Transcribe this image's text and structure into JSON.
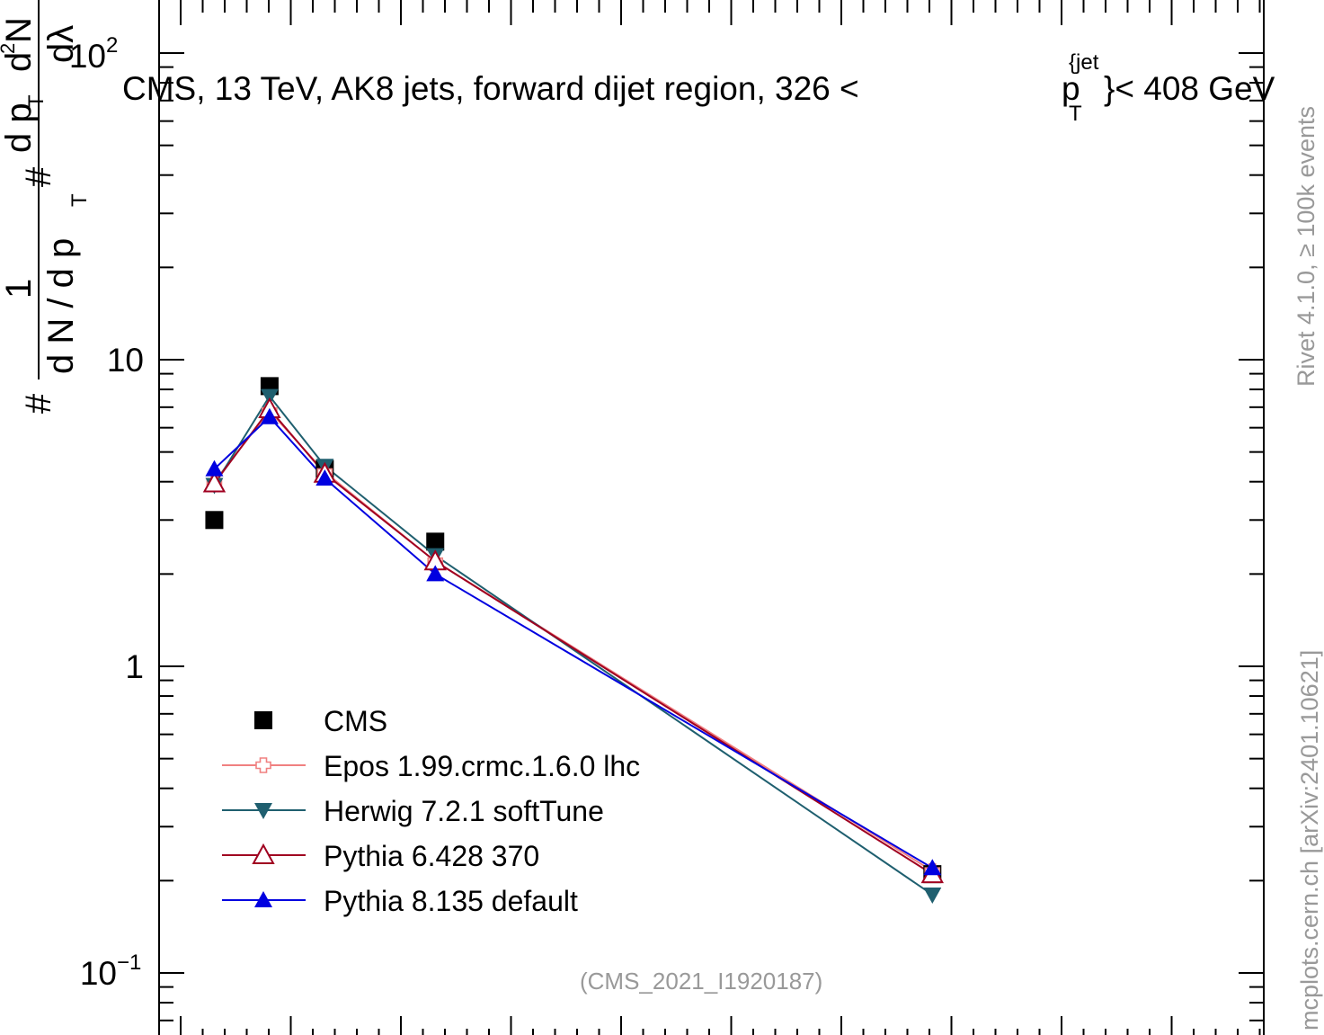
{
  "header": {
    "title_text": "CMS, 13 TeV, AK8 jets, forward dijet region, 326 <",
    "title_p": "p",
    "title_sup": "{jet",
    "title_sub": "T",
    "title_end": "}< 408 GeV"
  },
  "side": {
    "rivet": "Rivet 4.1.0, ≥ 100k events",
    "mcplots": "mcplots.cern.ch [arXiv:2401.10621]"
  },
  "ytitle": {
    "hash": "#",
    "one": "1",
    "dN": "d N / d p",
    "T": "T",
    "hash2": "#",
    "dpT": "d p",
    "T2": "T",
    "d2N": "d",
    "two": "2",
    "N": "N",
    "dl": "dλ"
  },
  "ref": "(CMS_2021_I1920187)",
  "yticks": [
    {
      "value": 100,
      "base": "10",
      "exp": "2"
    },
    {
      "value": 10,
      "base": "10",
      "exp": ""
    },
    {
      "value": 1,
      "base": "1",
      "exp": ""
    },
    {
      "value": 0.1,
      "base": "10",
      "exp": "−1"
    }
  ],
  "colors": {
    "cms": "#000000",
    "epos": "#f08080",
    "herwig": "#1f5f6f",
    "py6": "#a00020",
    "py8": "#0000e0"
  },
  "chart_data": {
    "type": "line",
    "y_scale": "log",
    "ylim": [
      0.065,
      160
    ],
    "xlim": [
      0,
      1
    ],
    "legend_position": "bottom-left",
    "series": [
      {
        "name": "CMS",
        "marker": "square-filled",
        "color": "#000000",
        "line": false,
        "x": [
          0.05,
          0.1,
          0.15,
          0.25,
          0.7
        ],
        "y": [
          3.0,
          8.2,
          4.4,
          2.55,
          0.21
        ]
      },
      {
        "name": "Epos 1.99.crmc.1.6.0 lhc",
        "marker": "cross-open",
        "color": "#f08080",
        "line": true,
        "x": [
          0.05,
          0.1,
          0.15,
          0.25,
          0.7
        ],
        "y": [
          4.0,
          6.8,
          4.3,
          2.2,
          0.215
        ]
      },
      {
        "name": "Herwig 7.2.1 softTune",
        "marker": "triangle-down-filled",
        "color": "#1f5f6f",
        "line": true,
        "x": [
          0.05,
          0.1,
          0.15,
          0.25,
          0.7
        ],
        "y": [
          3.9,
          7.6,
          4.5,
          2.3,
          0.18
        ]
      },
      {
        "name": "Pythia 6.428 370",
        "marker": "triangle-up-open",
        "color": "#a00020",
        "line": true,
        "x": [
          0.05,
          0.1,
          0.15,
          0.25,
          0.7
        ],
        "y": [
          3.95,
          6.9,
          4.25,
          2.2,
          0.21
        ]
      },
      {
        "name": "Pythia 8.135 default",
        "marker": "triangle-up-filled",
        "color": "#0000e0",
        "line": true,
        "x": [
          0.05,
          0.1,
          0.15,
          0.25,
          0.7
        ],
        "y": [
          4.4,
          6.5,
          4.1,
          2.0,
          0.22
        ]
      }
    ]
  }
}
